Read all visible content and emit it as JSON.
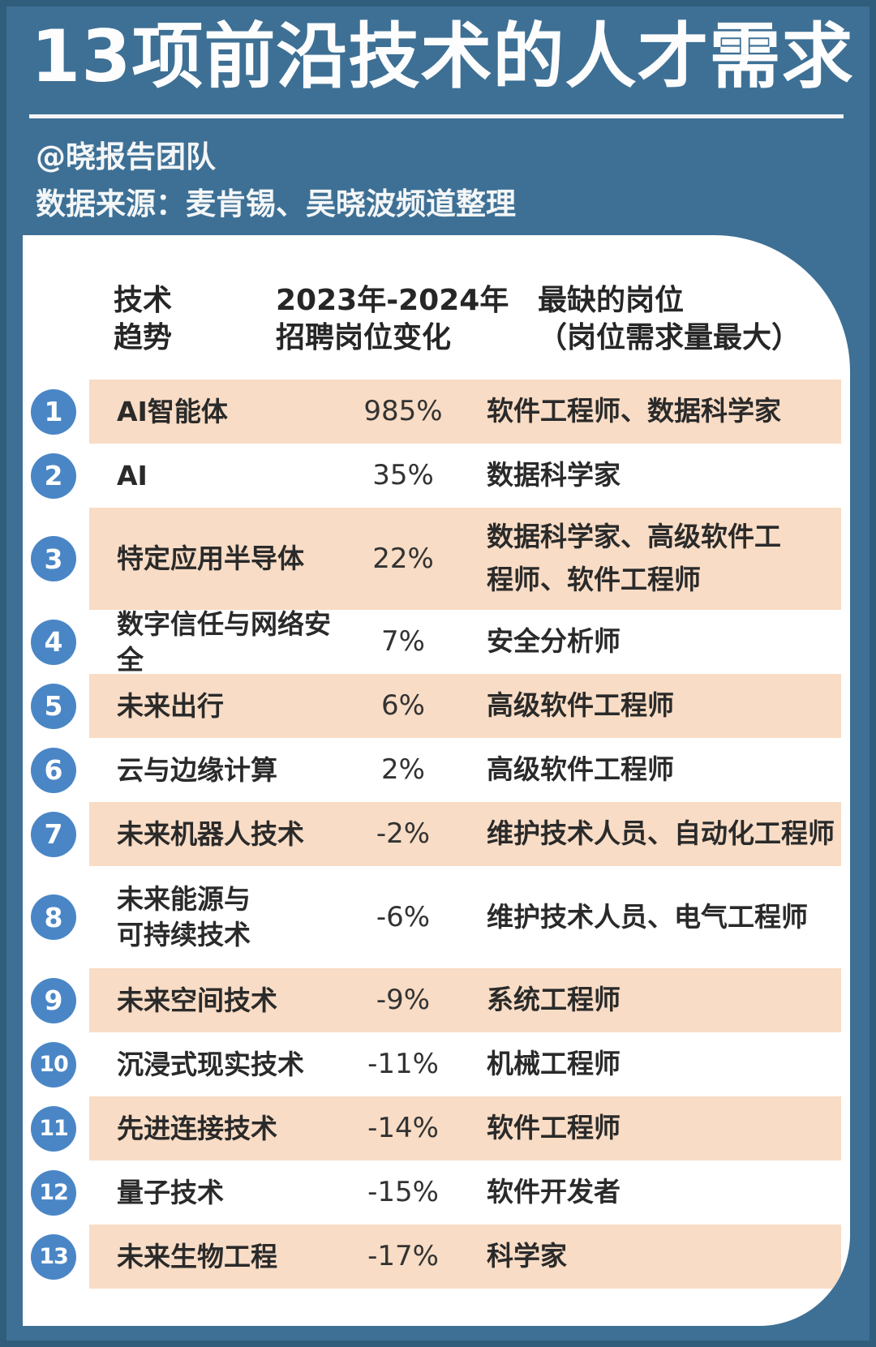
{
  "page": {
    "title": "13项前沿技术的人才需求",
    "byline": "@晓报告团队",
    "source": "数据来源：麦肯锡、吴晓波频道整理"
  },
  "colors": {
    "background_blue": "#3e7095",
    "frame_edge_blue": "#2e5878",
    "card_white": "#ffffff",
    "stripe_peach": "#f8dcc5",
    "badge_blue": "#4a86c6",
    "text_dark": "#2a2a2a",
    "title_white": "#fdfdfd"
  },
  "table": {
    "headers": {
      "tech": "技术\n趋势",
      "change": "2023年-2024年\n招聘岗位变化",
      "jobs": "最缺的岗位\n（岗位需求量最大）"
    },
    "rows": [
      {
        "num": "1",
        "tech": "AI智能体",
        "change": "985%",
        "jobs": "软件工程师、数据科学家",
        "highlight": true,
        "tall": false
      },
      {
        "num": "2",
        "tech": "AI",
        "change": "35%",
        "jobs": "数据科学家",
        "highlight": false,
        "tall": false
      },
      {
        "num": "3",
        "tech": "特定应用半导体",
        "change": "22%",
        "jobs": "数据科学家、高级软件工\n程师、软件工程师",
        "highlight": true,
        "tall": true
      },
      {
        "num": "4",
        "tech": "数字信任与网络安全",
        "change": "7%",
        "jobs": "安全分析师",
        "highlight": false,
        "tall": false
      },
      {
        "num": "5",
        "tech": "未来出行",
        "change": "6%",
        "jobs": "高级软件工程师",
        "highlight": true,
        "tall": false
      },
      {
        "num": "6",
        "tech": "云与边缘计算",
        "change": "2%",
        "jobs": "高级软件工程师",
        "highlight": false,
        "tall": false
      },
      {
        "num": "7",
        "tech": "未来机器人技术",
        "change": "-2%",
        "jobs": "维护技术人员、自动化工程师",
        "highlight": true,
        "tall": false
      },
      {
        "num": "8",
        "tech": "未来能源与\n可持续技术",
        "change": "-6%",
        "jobs": "维护技术人员、电气工程师",
        "highlight": false,
        "tall": true
      },
      {
        "num": "9",
        "tech": "未来空间技术",
        "change": "-9%",
        "jobs": "系统工程师",
        "highlight": true,
        "tall": false
      },
      {
        "num": "10",
        "tech": "沉浸式现实技术",
        "change": "-11%",
        "jobs": "机械工程师",
        "highlight": false,
        "tall": false
      },
      {
        "num": "11",
        "tech": "先进连接技术",
        "change": "-14%",
        "jobs": "软件工程师",
        "highlight": true,
        "tall": false
      },
      {
        "num": "12",
        "tech": "量子技术",
        "change": "-15%",
        "jobs": "软件开发者",
        "highlight": false,
        "tall": false
      },
      {
        "num": "13",
        "tech": "未来生物工程",
        "change": "-17%",
        "jobs": "科学家",
        "highlight": true,
        "tall": false
      }
    ]
  },
  "chart_data": {
    "type": "table",
    "title": "13项前沿技术的人才需求",
    "columns": [
      "技术趋势",
      "2023年-2024年招聘岗位变化",
      "最缺的岗位（岗位需求量最大）"
    ],
    "categories": [
      "AI智能体",
      "AI",
      "特定应用半导体",
      "数字信任与网络安全",
      "未来出行",
      "云与边缘计算",
      "未来机器人技术",
      "未来能源与可持续技术",
      "未来空间技术",
      "沉浸式现实技术",
      "先进连接技术",
      "量子技术",
      "未来生物工程"
    ],
    "values": [
      985,
      35,
      22,
      7,
      6,
      2,
      -2,
      -6,
      -9,
      -11,
      -14,
      -15,
      -17
    ],
    "unit": "%",
    "top_jobs": [
      "软件工程师、数据科学家",
      "数据科学家",
      "数据科学家、高级软件工程师、软件工程师",
      "安全分析师",
      "高级软件工程师",
      "高级软件工程师",
      "维护技术人员、自动化工程师",
      "维护技术人员、电气工程师",
      "系统工程师",
      "机械工程师",
      "软件工程师",
      "软件开发者",
      "科学家"
    ]
  }
}
